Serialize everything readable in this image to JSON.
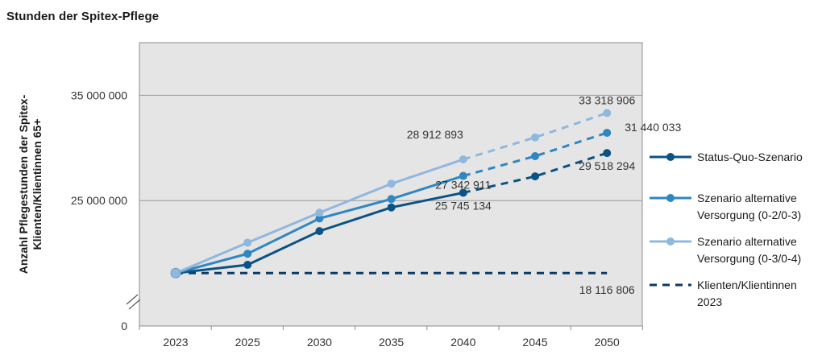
{
  "title": "Stunden der Spitex-Pflege",
  "colors": {
    "status_quo": "#0b5384",
    "alt_0203": "#2f86c1",
    "alt_0304": "#8fb8df",
    "baseline": "#0b3a66",
    "plot_bg": "#e5e5e5"
  },
  "chart_data": {
    "type": "line",
    "title": "Stunden der Spitex-Pflege",
    "xlabel": "",
    "ylabel": "Anzahl Pflegestunden der Spitex-Klienten/Klientinnen 65+",
    "ylabel_lines": [
      "Anzahl Pflegestunden der Spitex-",
      "Klienten/Klientinnen 65+"
    ],
    "categories": [
      "2023",
      "2025",
      "2030",
      "2035",
      "2040",
      "2045",
      "2050"
    ],
    "ylim": [
      15000000,
      40000000
    ],
    "axis_break": true,
    "y_ticks": [
      {
        "value": 0,
        "label": "0"
      },
      {
        "value": 25000000,
        "label": "25 000 000"
      },
      {
        "value": 35000000,
        "label": "35 000 000"
      }
    ],
    "grid": true,
    "legend_position": "right",
    "series": [
      {
        "key": "status_quo",
        "name": "Status-Quo-Szenario",
        "legend_lines": [
          "Status-Quo-Szenario"
        ],
        "values": [
          18116806,
          18900000,
          22100000,
          24350000,
          25745134,
          27300000,
          29518294
        ],
        "solid_until_index": 4,
        "labels": [
          {
            "index": 4,
            "text": "25 745 134",
            "pos": "below"
          },
          {
            "index": 6,
            "text": "29 518 294",
            "pos": "below"
          }
        ]
      },
      {
        "key": "alt_0203",
        "name": "Szenario alternative Versorgung (0-2/0-3)",
        "legend_lines": [
          "Szenario alternative",
          "Versorgung (0-2/0-3)"
        ],
        "values": [
          18116806,
          19950000,
          23300000,
          25150000,
          27342911,
          29220000,
          31440033
        ],
        "solid_until_index": 4,
        "labels": [
          {
            "index": 4,
            "text": "27 342 911",
            "pos": "below"
          },
          {
            "index": 6,
            "text": "31 440 033",
            "pos": "right"
          }
        ]
      },
      {
        "key": "alt_0304",
        "name": "Szenario alternative Versorgung (0-3/0-4)",
        "legend_lines": [
          "Szenario alternative",
          "Versorgung (0-3/0-4)"
        ],
        "values": [
          18116806,
          21000000,
          23850000,
          26600000,
          28912893,
          31000000,
          33318906
        ],
        "solid_until_index": 4,
        "labels": [
          {
            "index": 4,
            "text": "28 912 893",
            "pos": "above-left"
          },
          {
            "index": 6,
            "text": "33 318 906",
            "pos": "above"
          }
        ]
      },
      {
        "key": "baseline",
        "name": "Klienten/Klientinnen 2023",
        "legend_lines": [
          "Klienten/Klientinnen",
          "2023"
        ],
        "values": [
          18116806,
          18116806,
          18116806,
          18116806,
          18116806,
          18116806,
          18116806
        ],
        "dashed": true,
        "labels": [
          {
            "index": 6,
            "text": "18 116 806",
            "pos": "below"
          }
        ]
      }
    ]
  }
}
